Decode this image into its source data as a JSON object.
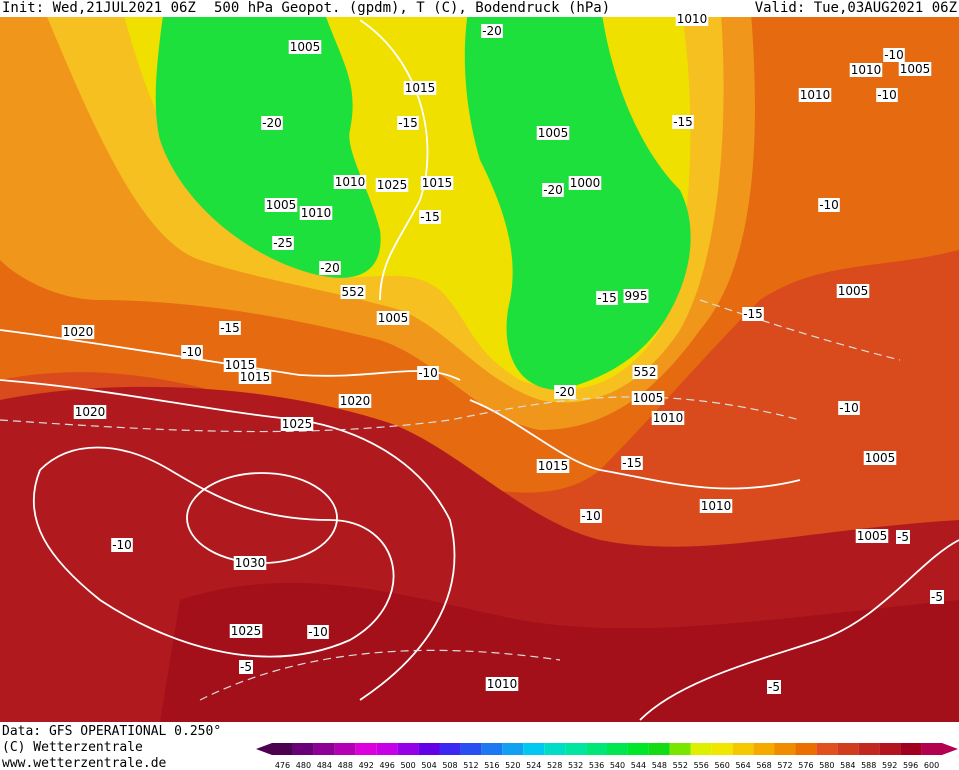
{
  "header": {
    "init": "Init: Wed,21JUL2021 06Z",
    "title": "500 hPa Geopot. (gpdm), T (C), Bodendruck (hPa)",
    "valid": "Valid: Tue,03AUG2021 06Z"
  },
  "footer": {
    "data_source": "Data: GFS OPERATIONAL 0.250°",
    "copyright": "(C) Wetterzentrale",
    "website": "www.wetterzentrale.de"
  },
  "map_labels": [
    "1005",
    "1015",
    "-20",
    "-15",
    "1005",
    "1010",
    "1025",
    "1015",
    "1000",
    "-20",
    "1005",
    "1010",
    "-15",
    "-25",
    "-20",
    "552",
    "-15",
    "995",
    "1005",
    "1020",
    "-15",
    "-10",
    "1015",
    "1015",
    "-10",
    "552",
    "-20",
    "1005",
    "1020",
    "1020",
    "1010",
    "1025",
    "1015",
    "-15",
    "1010",
    "-10",
    "-10",
    "1030",
    "1005",
    "-5",
    "-5",
    "1025",
    "-10",
    "-5",
    "1010",
    "-5",
    "1010",
    "1005",
    "-10",
    "1010",
    "-10",
    "-15",
    "-10",
    "1005",
    "-15",
    "-10",
    "1005",
    "-20",
    "1010"
  ],
  "color_scale": {
    "labels": [
      "476",
      "480",
      "484",
      "488",
      "492",
      "496",
      "500",
      "504",
      "508",
      "512",
      "516",
      "520",
      "524",
      "528",
      "532",
      "536",
      "540",
      "544",
      "548",
      "552",
      "556",
      "560",
      "564",
      "568",
      "572",
      "576",
      "580",
      "584",
      "588",
      "592",
      "596",
      "600"
    ],
    "colors": [
      "#4b0050",
      "#6a0078",
      "#8c0096",
      "#b400b4",
      "#dc00dc",
      "#c800e6",
      "#9600e6",
      "#6400e6",
      "#3c28f0",
      "#2850f0",
      "#1e78f0",
      "#14a0f0",
      "#00c8f0",
      "#00dcc8",
      "#00e6a0",
      "#00e678",
      "#00e650",
      "#00e628",
      "#14dc14",
      "#78e600",
      "#dcf000",
      "#f0e600",
      "#f5c800",
      "#f5aa00",
      "#f08c00",
      "#eb6e00",
      "#e1501e",
      "#d23c1e",
      "#c3281e",
      "#b4141e",
      "#a0001e",
      "#b40050"
    ]
  }
}
